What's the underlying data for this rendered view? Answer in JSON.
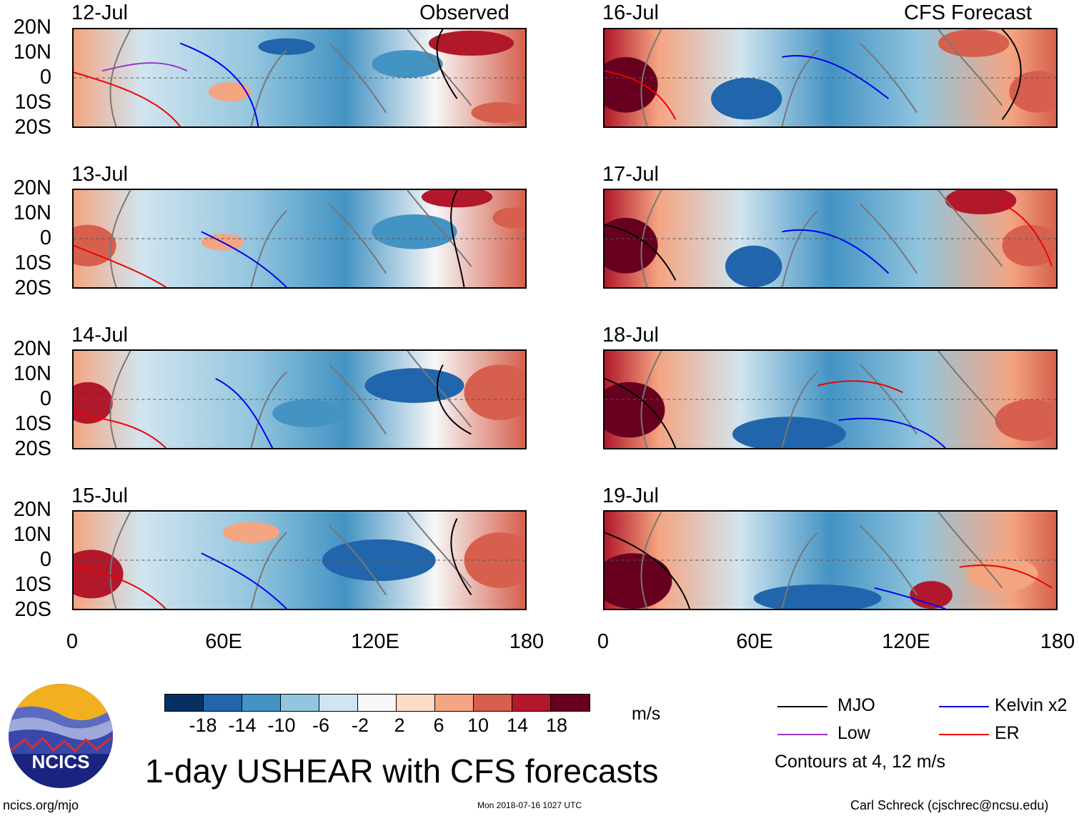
{
  "figure": {
    "main_title": "1-day USHEAR with CFS forecasts",
    "observed_label": "Observed",
    "forecast_label": "CFS Forecast",
    "units": "m/s",
    "contours_note": "Contours at 4, 12 m/s"
  },
  "panels_left": [
    {
      "date": "12-Jul"
    },
    {
      "date": "13-Jul"
    },
    {
      "date": "14-Jul"
    },
    {
      "date": "15-Jul"
    }
  ],
  "panels_right": [
    {
      "date": "16-Jul"
    },
    {
      "date": "17-Jul"
    },
    {
      "date": "18-Jul"
    },
    {
      "date": "19-Jul"
    }
  ],
  "axes": {
    "lat_ticks": [
      "20N",
      "10N",
      "0",
      "10S",
      "20S"
    ],
    "lon_ticks": [
      "0",
      "60E",
      "120E",
      "180"
    ]
  },
  "colorbar": {
    "labels": [
      "-18",
      "-14",
      "-10",
      "-6",
      "-2",
      "2",
      "6",
      "10",
      "14",
      "18"
    ],
    "colors": [
      "#053061",
      "#2166ac",
      "#4393c3",
      "#92c5de",
      "#d1e5f0",
      "#f7f7f7",
      "#fddbc7",
      "#f4a582",
      "#d6604d",
      "#b2182b",
      "#67001f"
    ]
  },
  "legend": [
    {
      "label": "MJO",
      "color": "#000000"
    },
    {
      "label": "Kelvin x2",
      "color": "#0000ee"
    },
    {
      "label": "Low",
      "color": "#9933cc"
    },
    {
      "label": "ER",
      "color": "#ee0000"
    }
  ],
  "footer": {
    "site": "ncics.org/mjo",
    "timestamp": "Mon 2018-07-16 1027 UTC",
    "credit": "Carl Schreck (cjschrec@ncsu.edu)",
    "logo_text": "NCICS"
  }
}
